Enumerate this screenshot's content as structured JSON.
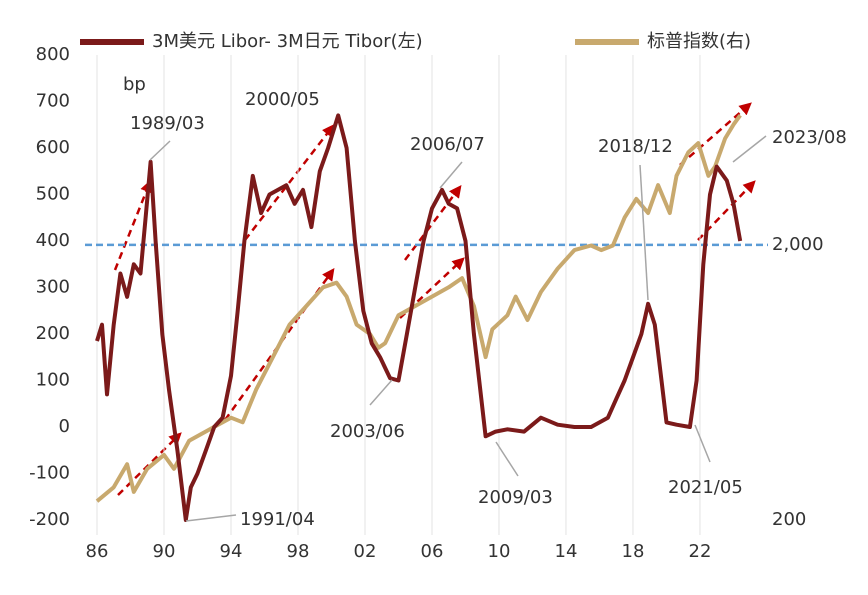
{
  "chart_data": {
    "type": "line",
    "y_label": "bp",
    "xlim": [
      1986,
      2025.5
    ],
    "xticks": [
      {
        "value": 1986,
        "label": "86"
      },
      {
        "value": 1990,
        "label": "90"
      },
      {
        "value": 1994,
        "label": "94"
      },
      {
        "value": 1998,
        "label": "98"
      },
      {
        "value": 2002,
        "label": "02"
      },
      {
        "value": 2006,
        "label": "06"
      },
      {
        "value": 2010,
        "label": "10"
      },
      {
        "value": 2014,
        "label": "14"
      },
      {
        "value": 2018,
        "label": "18"
      },
      {
        "value": 2022,
        "label": "22"
      }
    ],
    "ylim": [
      -200,
      800
    ],
    "yticks": [
      -200,
      -100,
      0,
      100,
      200,
      300,
      400,
      500,
      600,
      700,
      800
    ],
    "y2lim": [
      200,
      9800
    ],
    "y2log": true,
    "y2ticks": [
      200,
      {
        "value": 2000,
        "label": "2,000"
      }
    ],
    "grid": "x",
    "legend": "top",
    "hline": {
      "axis": "y2",
      "value": 2000,
      "color": "#5b9bd5"
    },
    "annotations": [
      "1989/03",
      "1991/04",
      "2000/05",
      "2003/06",
      "2006/07",
      "2009/03",
      "2018/12",
      "2021/05",
      "2023/08"
    ],
    "series": [
      {
        "name": "3M美元 Libor- 3M日元 Tibor(左)",
        "color": "#7b1a1a",
        "x": [
          1986.0,
          1986.3,
          1986.6,
          1987.0,
          1987.4,
          1987.8,
          1988.2,
          1988.6,
          1988.9,
          1989.2,
          1989.5,
          1989.9,
          1990.3,
          1990.8,
          1991.3,
          1991.6,
          1992.0,
          1992.5,
          1993.0,
          1993.5,
          1994.0,
          1994.4,
          1994.8,
          1995.3,
          1995.8,
          1996.3,
          1996.8,
          1997.3,
          1997.8,
          1998.3,
          1998.8,
          1999.3,
          1999.8,
          2000.4,
          2000.9,
          2001.4,
          2001.9,
          2002.4,
          2002.9,
          2003.5,
          2004.0,
          2004.5,
          2005.0,
          2005.5,
          2006.0,
          2006.6,
          2007.0,
          2007.5,
          2008.0,
          2008.5,
          2009.2,
          2009.8,
          2010.5,
          2011.5,
          2012.5,
          2013.5,
          2014.5,
          2015.5,
          2016.5,
          2017.0,
          2017.5,
          2018.0,
          2018.5,
          2018.9,
          2019.3,
          2019.7,
          2020.0,
          2020.6,
          2021.4,
          2021.8,
          2022.2,
          2022.6,
          2023.0,
          2023.6,
          2024.0,
          2024.4
        ],
        "values": [
          185,
          220,
          70,
          220,
          330,
          280,
          350,
          330,
          450,
          570,
          400,
          200,
          80,
          -50,
          -200,
          -130,
          -100,
          -50,
          0,
          20,
          110,
          250,
          400,
          540,
          460,
          500,
          510,
          520,
          480,
          510,
          430,
          550,
          600,
          670,
          600,
          400,
          250,
          180,
          150,
          105,
          100,
          200,
          300,
          400,
          470,
          510,
          480,
          470,
          400,
          200,
          -20,
          -10,
          -5,
          -10,
          20,
          5,
          0,
          0,
          20,
          60,
          100,
          150,
          200,
          265,
          220,
          100,
          10,
          5,
          0,
          100,
          350,
          500,
          560,
          530,
          480,
          400
        ]
      },
      {
        "name": "标普指数(右)",
        "color": "#c8a96e",
        "axis": "y2",
        "x": [
          1986.0,
          1987.0,
          1987.8,
          1988.2,
          1989.0,
          1990.0,
          1990.6,
          1991.5,
          1993.0,
          1994.0,
          1994.7,
          1995.5,
          1996.5,
          1997.5,
          1998.5,
          1999.5,
          2000.3,
          2000.9,
          2001.5,
          2002.3,
          2002.8,
          2003.2,
          2004.0,
          2005.0,
          2006.0,
          2007.0,
          2007.8,
          2008.5,
          2009.2,
          2009.6,
          2010.5,
          2011.0,
          2011.7,
          2012.5,
          2013.5,
          2014.5,
          2015.5,
          2016.1,
          2016.8,
          2017.5,
          2018.2,
          2018.9,
          2019.5,
          2020.2,
          2020.6,
          2021.3,
          2021.9,
          2022.5,
          2022.9,
          2023.5,
          2024.0,
          2024.4
        ],
        "values": [
          234,
          263,
          319,
          253,
          307,
          345,
          307,
          388,
          436,
          471,
          453,
          595,
          782,
          1026,
          1199,
          1402,
          1457,
          1297,
          1026,
          949,
          845,
          878,
          1109,
          1199,
          1297,
          1402,
          1515,
          1199,
          782,
          987,
          1109,
          1297,
          1067,
          1348,
          1638,
          1914,
          1989,
          1914,
          1989,
          2514,
          2938,
          2612,
          3300,
          2612,
          3567,
          4336,
          4687,
          3567,
          3855,
          4871,
          5475,
          5918
        ]
      }
    ]
  }
}
